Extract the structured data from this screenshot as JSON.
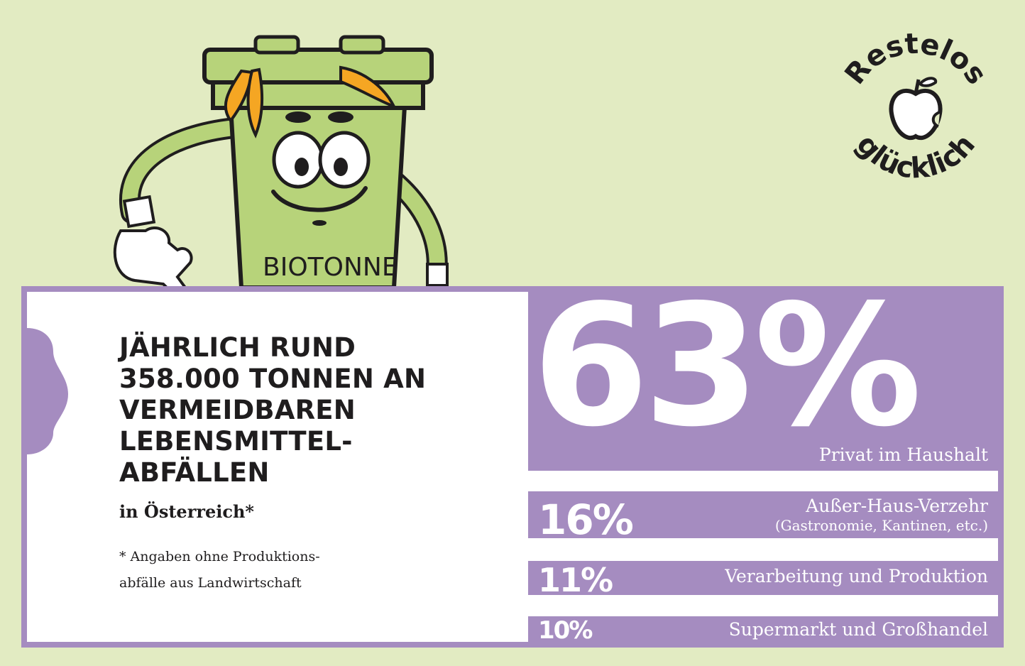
{
  "headline_lines": [
    "JÄHRLICH RUND",
    "358.000 TONNEN AN",
    "VERMEIDBAREN",
    "LEBENSMITTEL-",
    "ABFÄLLEN"
  ],
  "subheadline": "in Österreich*",
  "footnote_lines": [
    "* Angaben ohne Produktions-",
    "abfälle aus Landwirtschaft"
  ],
  "mascot": {
    "label": "BIOTONNE",
    "icon": "biotonne-mascot-icon"
  },
  "badge": {
    "top_text": "Restelos",
    "bottom_text": "glücklich",
    "icon": "apple-core-icon"
  },
  "colors": {
    "background": "#e2ebc2",
    "card": "#ffffff",
    "accent": "#a58cc0",
    "text": "#1f1d1e",
    "mascot_green": "#b7d37a",
    "peel_orange": "#f5a623"
  },
  "chart_data": {
    "type": "bar",
    "categories": [
      "Privat im Haushalt",
      "Außer-Haus-Verzehr",
      "Verarbeitung und Produktion",
      "Supermarkt und Großhandel"
    ],
    "values": [
      63,
      16,
      11,
      10
    ],
    "value_labels": [
      "63%",
      "16%",
      "11%",
      "10%"
    ],
    "category_notes": [
      "",
      "(Gastronomie, Kantinen, etc.)",
      "",
      ""
    ],
    "unit": "%"
  }
}
